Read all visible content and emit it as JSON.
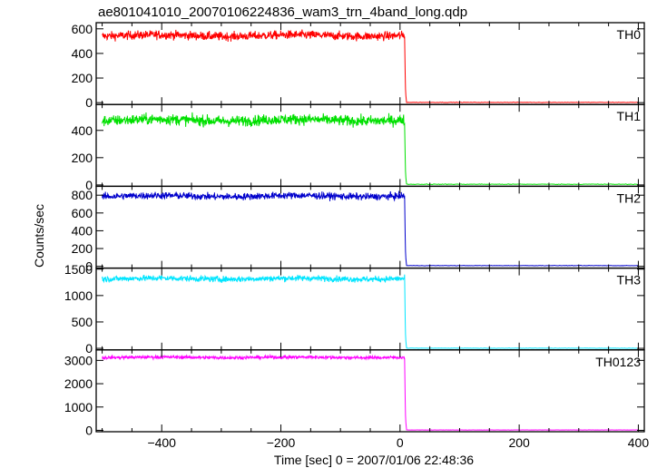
{
  "figure": {
    "title": "ae801041010_20070106224836_wam3_trn_4band_long.qdp",
    "xlabel": "Time [sec] 0 = 2007/01/06 22:48:36",
    "ylabel": "Counts/sec"
  },
  "chart_data": {
    "type": "line",
    "xlim": [
      -510,
      410
    ],
    "xticks": [
      -400,
      -200,
      0,
      200,
      400
    ],
    "grid": false,
    "panels": [
      {
        "name": "TH0",
        "color": "#ff0000",
        "ylim": [
          -15,
          650
        ],
        "yticks": [
          0,
          200,
          400,
          600
        ],
        "pre_burst_level": 545,
        "pre_burst_noise": 25,
        "drop_time": 8,
        "post_level": 2
      },
      {
        "name": "TH1",
        "color": "#00e000",
        "ylim": [
          -10,
          590
        ],
        "yticks": [
          0,
          200,
          400
        ],
        "pre_burst_level": 475,
        "pre_burst_noise": 28,
        "drop_time": 8,
        "post_level": 5
      },
      {
        "name": "TH2",
        "color": "#0000cc",
        "ylim": [
          -20,
          900
        ],
        "yticks": [
          0,
          200,
          400,
          600,
          800
        ],
        "pre_burst_level": 790,
        "pre_burst_noise": 28,
        "drop_time": 8,
        "post_level": 8
      },
      {
        "name": "TH3",
        "color": "#00e5ff",
        "ylim": [
          -30,
          1520
        ],
        "yticks": [
          0,
          500,
          1000,
          1500
        ],
        "pre_burst_level": 1320,
        "pre_burst_noise": 40,
        "drop_time": 8,
        "post_level": 3
      },
      {
        "name": "TH0123",
        "color": "#ff00ff",
        "ylim": [
          -60,
          3450
        ],
        "yticks": [
          0,
          1000,
          2000,
          3000
        ],
        "pre_burst_level": 3130,
        "pre_burst_noise": 50,
        "drop_time": 8,
        "post_level": 15
      }
    ]
  }
}
